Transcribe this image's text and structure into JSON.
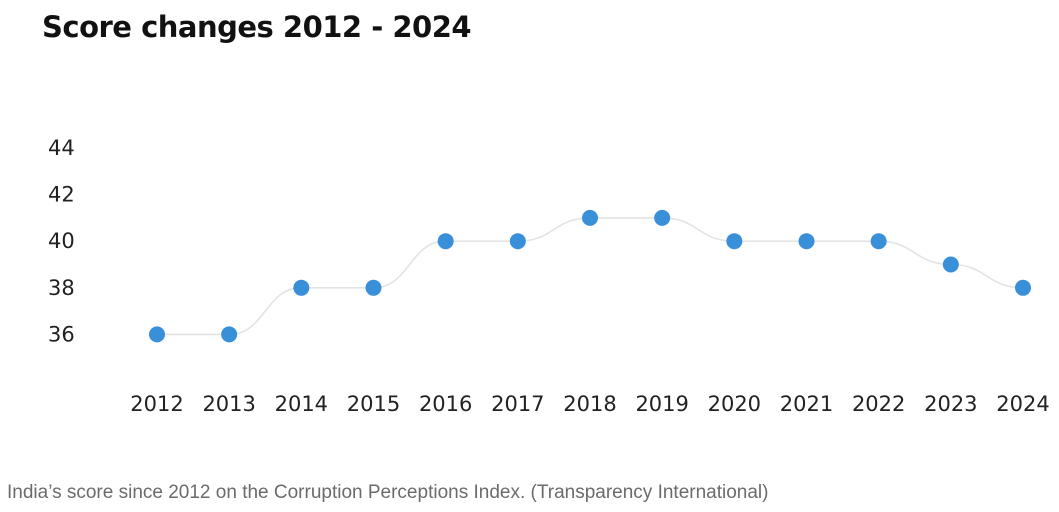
{
  "caption": "India’s score since 2012 on the Corruption Perceptions Index. (Transparency International)",
  "colors": {
    "point": "#3a8fd9",
    "line": "#e3e3e3",
    "title": "#111111",
    "caption": "#6b6b6b"
  },
  "chart_data": {
    "type": "line",
    "title": "Score changes 2012 - 2024",
    "xlabel": "",
    "ylabel": "",
    "categories": [
      "2012",
      "2013",
      "2014",
      "2015",
      "2016",
      "2017",
      "2018",
      "2019",
      "2020",
      "2021",
      "2022",
      "2023",
      "2024"
    ],
    "series": [
      {
        "values": [
          36,
          36,
          38,
          38,
          40,
          40,
          41,
          41,
          40,
          40,
          40,
          39,
          38
        ]
      }
    ],
    "yticks": [
      36,
      38,
      40,
      42,
      44
    ],
    "ylim": [
      35,
      44
    ],
    "grid": false,
    "legend": "none"
  }
}
